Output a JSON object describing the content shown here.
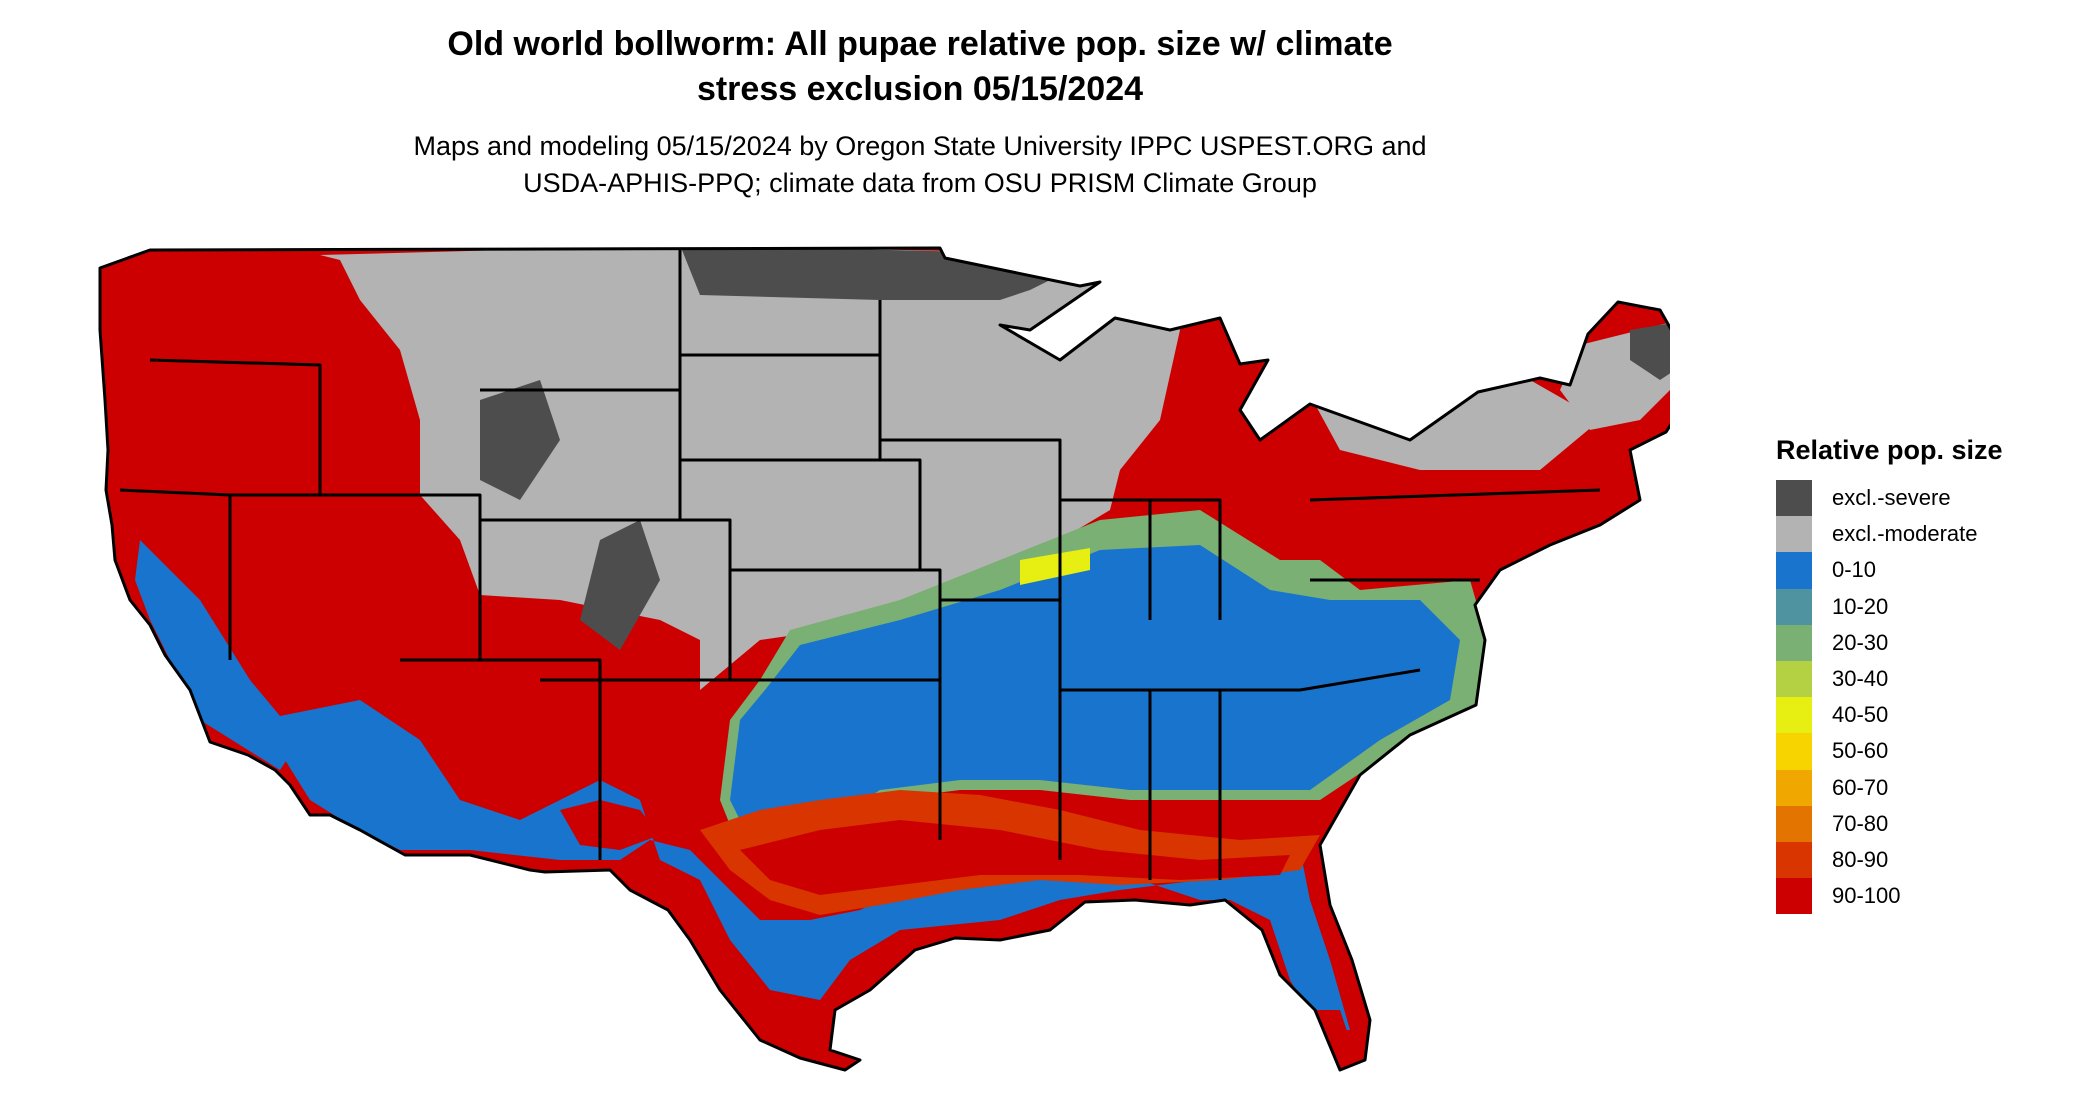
{
  "map": {
    "title_lines": [
      "Old world bollworm: All pupae relative pop. size w/ climate",
      "stress exclusion 05/15/2024"
    ],
    "subtitle_lines": [
      "Maps and modeling 05/15/2024 by Oregon State University IPPC USPEST.ORG and",
      "USDA-APHIS-PPQ; climate data from OSU PRISM Climate Group"
    ],
    "region": "Contiguous United States",
    "colors": {
      "excl_severe": "#4d4d4d",
      "excl_moderate": "#b3b3b3",
      "c0_10": "#1874cd",
      "c10_20": "#4f93a0",
      "c20_30": "#7ab073",
      "c30_40": "#b3d142",
      "c40_50": "#e6ee12",
      "c50_60": "#f7d400",
      "c60_70": "#f0a800",
      "c70_80": "#e47400",
      "c80_90": "#d83500",
      "c90_100": "#cc0000",
      "state_border": "#000000"
    }
  },
  "legend": {
    "title": "Relative pop. size",
    "items": [
      {
        "label": "excl.-severe",
        "color": "#4d4d4d"
      },
      {
        "label": "excl.-moderate",
        "color": "#b3b3b3"
      },
      {
        "label": "0-10",
        "color": "#1874cd"
      },
      {
        "label": "10-20",
        "color": "#4f93a0"
      },
      {
        "label": "20-30",
        "color": "#7ab073"
      },
      {
        "label": "30-40",
        "color": "#b3d142"
      },
      {
        "label": "40-50",
        "color": "#e6ee12"
      },
      {
        "label": "50-60",
        "color": "#f7d400"
      },
      {
        "label": "60-70",
        "color": "#f0a800"
      },
      {
        "label": "70-80",
        "color": "#e47400"
      },
      {
        "label": "80-90",
        "color": "#d83500"
      },
      {
        "label": "90-100",
        "color": "#cc0000"
      }
    ]
  }
}
